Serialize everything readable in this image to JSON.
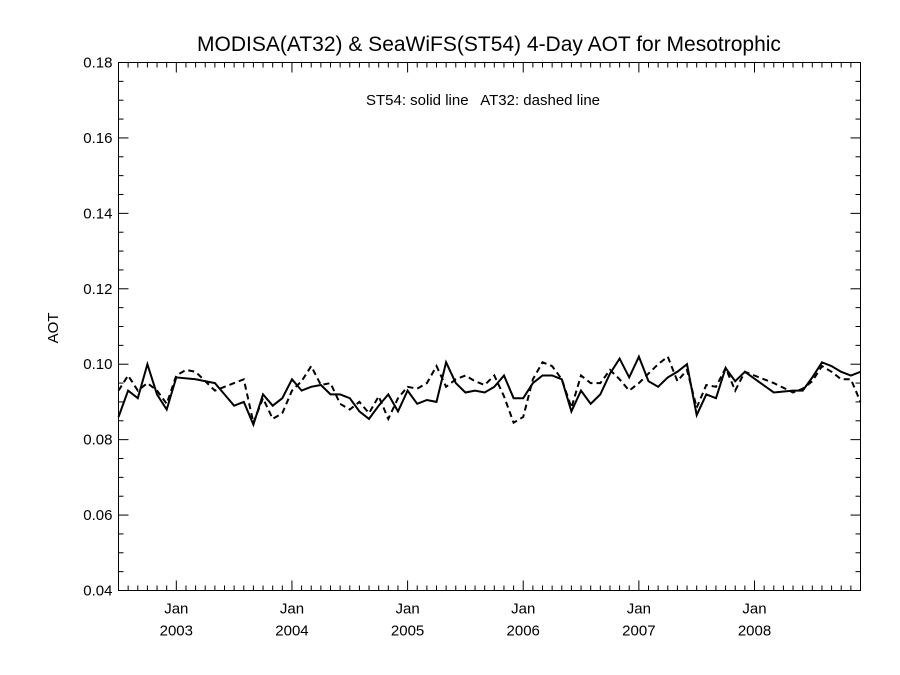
{
  "chart_data": {
    "type": "line",
    "title": "MODISA(AT32) & SeaWiFS(ST54) 4-Day AOT for Mesotrophic",
    "xlabel": "",
    "ylabel": "AOT",
    "annotation": "ST54: solid line   AT32: dashed line",
    "ylim": [
      0.04,
      0.18
    ],
    "y_ticks": [
      "0.04",
      "0.06",
      "0.08",
      "0.10",
      "0.12",
      "0.14",
      "0.16",
      "0.18"
    ],
    "xlim": [
      "2002-07",
      "2008-12"
    ],
    "x_ticks": [
      {
        "month": "Jan",
        "year": "2003",
        "date": "2003-01"
      },
      {
        "month": "Jan",
        "year": "2004",
        "date": "2004-01"
      },
      {
        "month": "Jan",
        "year": "2005",
        "date": "2005-01"
      },
      {
        "month": "Jan",
        "year": "2006",
        "date": "2006-01"
      },
      {
        "month": "Jan",
        "year": "2007",
        "date": "2007-01"
      },
      {
        "month": "Jan",
        "year": "2008",
        "date": "2008-01"
      }
    ],
    "series": [
      {
        "name": "ST54",
        "style": "solid",
        "x": [
          "2002-07",
          "2002-08",
          "2002-09",
          "2002-10",
          "2002-11",
          "2002-12",
          "2003-01",
          "2003-03",
          "2003-05",
          "2003-06",
          "2003-07",
          "2003-08",
          "2003-09",
          "2003-10",
          "2003-11",
          "2003-12",
          "2004-01",
          "2004-02",
          "2004-03",
          "2004-04",
          "2004-05",
          "2004-06",
          "2004-07",
          "2004-08",
          "2004-09",
          "2004-10",
          "2004-11",
          "2004-12",
          "2005-01",
          "2005-02",
          "2005-03",
          "2005-04",
          "2005-05",
          "2005-06",
          "2005-07",
          "2005-08",
          "2005-09",
          "2005-10",
          "2005-11",
          "2005-12",
          "2006-01",
          "2006-02",
          "2006-03",
          "2006-04",
          "2006-05",
          "2006-06",
          "2006-07",
          "2006-08",
          "2006-09",
          "2006-10",
          "2006-11",
          "2006-12",
          "2007-01",
          "2007-02",
          "2007-03",
          "2007-04",
          "2007-05",
          "2007-06",
          "2007-07",
          "2007-08",
          "2007-09",
          "2007-10",
          "2007-11",
          "2007-12",
          "2008-03",
          "2008-05",
          "2008-06",
          "2008-07",
          "2008-08",
          "2008-09",
          "2008-10",
          "2008-11",
          "2008-12"
        ],
        "y": [
          0.086,
          0.093,
          0.091,
          0.1,
          0.092,
          0.088,
          0.0965,
          0.096,
          0.095,
          0.092,
          0.089,
          0.09,
          0.084,
          0.092,
          0.089,
          0.091,
          0.096,
          0.093,
          0.094,
          0.0945,
          0.092,
          0.092,
          0.091,
          0.0875,
          0.0855,
          0.089,
          0.092,
          0.0875,
          0.093,
          0.0895,
          0.0905,
          0.09,
          0.1005,
          0.095,
          0.0925,
          0.093,
          0.0925,
          0.094,
          0.097,
          0.091,
          0.091,
          0.095,
          0.097,
          0.097,
          0.096,
          0.0875,
          0.093,
          0.0895,
          0.092,
          0.0975,
          0.1015,
          0.0965,
          0.102,
          0.0955,
          0.094,
          0.0965,
          0.098,
          0.1,
          0.0865,
          0.092,
          0.091,
          0.099,
          0.0955,
          0.098,
          0.0925,
          0.093,
          0.093,
          0.0965,
          0.1005,
          0.0995,
          0.098,
          0.097,
          0.098
        ]
      },
      {
        "name": "AT32",
        "style": "dashed",
        "x": [
          "2002-07",
          "2002-08",
          "2002-09",
          "2002-10",
          "2002-11",
          "2002-12",
          "2003-01",
          "2003-02",
          "2003-03",
          "2003-05",
          "2003-06",
          "2003-08",
          "2003-09",
          "2003-10",
          "2003-11",
          "2003-12",
          "2004-01",
          "2004-02",
          "2004-03",
          "2004-04",
          "2004-05",
          "2004-06",
          "2004-07",
          "2004-08",
          "2004-09",
          "2004-10",
          "2004-11",
          "2004-12",
          "2005-01",
          "2005-02",
          "2005-03",
          "2005-04",
          "2005-05",
          "2005-06",
          "2005-07",
          "2005-08",
          "2005-09",
          "2005-10",
          "2005-11",
          "2005-12",
          "2006-01",
          "2006-02",
          "2006-03",
          "2006-04",
          "2006-05",
          "2006-06",
          "2006-07",
          "2006-08",
          "2006-09",
          "2006-10",
          "2006-11",
          "2006-12",
          "2007-01",
          "2007-02",
          "2007-03",
          "2007-04",
          "2007-05",
          "2007-06",
          "2007-07",
          "2007-08",
          "2007-09",
          "2007-10",
          "2007-11",
          "2007-12",
          "2008-03",
          "2008-05",
          "2008-06",
          "2008-07",
          "2008-08",
          "2008-09",
          "2008-10",
          "2008-11",
          "2008-12"
        ],
        "y": [
          0.093,
          0.097,
          0.093,
          0.095,
          0.093,
          0.0895,
          0.097,
          0.0985,
          0.098,
          0.093,
          0.094,
          0.096,
          0.0845,
          0.091,
          0.0855,
          0.087,
          0.093,
          0.0955,
          0.0995,
          0.0945,
          0.095,
          0.0895,
          0.088,
          0.09,
          0.087,
          0.0915,
          0.0855,
          0.091,
          0.094,
          0.0935,
          0.095,
          0.0995,
          0.094,
          0.096,
          0.097,
          0.0955,
          0.0945,
          0.097,
          0.0915,
          0.0845,
          0.086,
          0.096,
          0.1005,
          0.0995,
          0.096,
          0.0885,
          0.097,
          0.095,
          0.095,
          0.0985,
          0.096,
          0.093,
          0.095,
          0.0975,
          0.1,
          0.102,
          0.0955,
          0.0985,
          0.0885,
          0.0945,
          0.094,
          0.099,
          0.093,
          0.098,
          0.095,
          0.0925,
          0.0935,
          0.0955,
          0.0995,
          0.098,
          0.096,
          0.096,
          0.09
        ]
      }
    ],
    "grid": false,
    "legend": "none"
  }
}
